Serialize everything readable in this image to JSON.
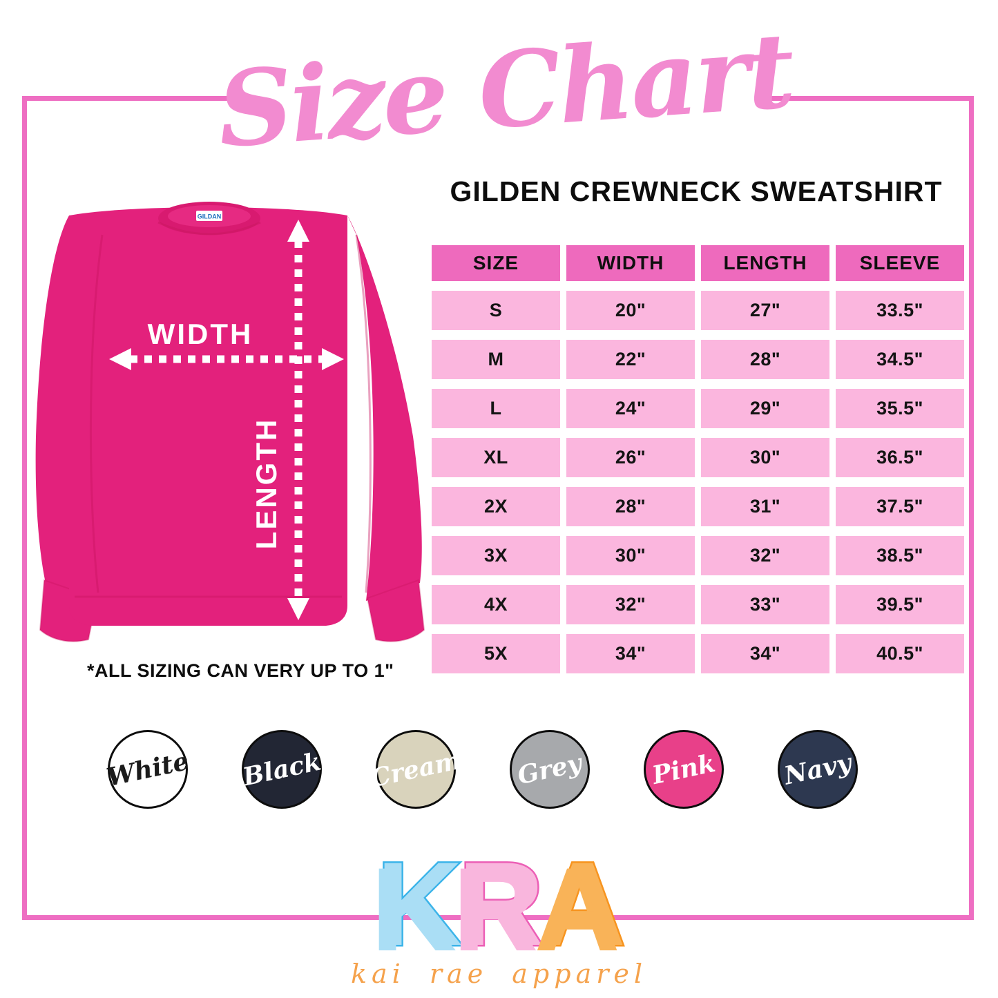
{
  "page": {
    "title": "Size Chart",
    "subtitle": "GILDEN CREWNECK SWEATSHIRT",
    "note": "*ALL SIZING CAN VERY UP TO 1\"",
    "frame_color": "#ee6ec2",
    "title_color": "#f28bd0"
  },
  "diagram": {
    "width_label": "WIDTH",
    "length_label": "LENGTH",
    "collar_tag": "GILDAN",
    "shirt_color": "#e3217c"
  },
  "chart_data": {
    "type": "table",
    "title": "GILDEN CREWNECK SWEATSHIRT",
    "columns": [
      "SIZE",
      "WIDTH",
      "LENGTH",
      "SLEEVE"
    ],
    "rows": [
      [
        "S",
        "20\"",
        "27\"",
        "33.5\""
      ],
      [
        "M",
        "22\"",
        "28\"",
        "34.5\""
      ],
      [
        "L",
        "24\"",
        "29\"",
        "35.5\""
      ],
      [
        "XL",
        "26\"",
        "30\"",
        "36.5\""
      ],
      [
        "2X",
        "28\"",
        "31\"",
        "37.5\""
      ],
      [
        "3X",
        "30\"",
        "32\"",
        "38.5\""
      ],
      [
        "4X",
        "32\"",
        "33\"",
        "39.5\""
      ],
      [
        "5X",
        "34\"",
        "34\"",
        "40.5\""
      ]
    ],
    "header_bg": "#ee6abd",
    "row_bg": "#fbb6de"
  },
  "swatches": [
    {
      "label": "White",
      "fill": "#ffffff",
      "text_color": "#1b1b1b"
    },
    {
      "label": "Black",
      "fill": "#222634",
      "text_color": "#ffffff"
    },
    {
      "label": "Cream",
      "fill": "#d9d3bc",
      "text_color": "#ffffff"
    },
    {
      "label": "Grey",
      "fill": "#a7a9ac",
      "text_color": "#ffffff"
    },
    {
      "label": "Pink",
      "fill": "#e84089",
      "text_color": "#ffffff"
    },
    {
      "label": "Navy",
      "fill": "#2d3850",
      "text_color": "#ffffff"
    }
  ],
  "logo": {
    "letters": [
      {
        "char": "K",
        "fill": "#aadef5",
        "outline": "#3cb4e9"
      },
      {
        "char": "R",
        "fill": "#f9b6dd",
        "outline": "#ec5fb6"
      },
      {
        "char": "A",
        "fill": "#f9b358",
        "outline": "#f7941f"
      }
    ],
    "tagline": "kai rae apparel",
    "tagline_color": "#f5a24c"
  }
}
